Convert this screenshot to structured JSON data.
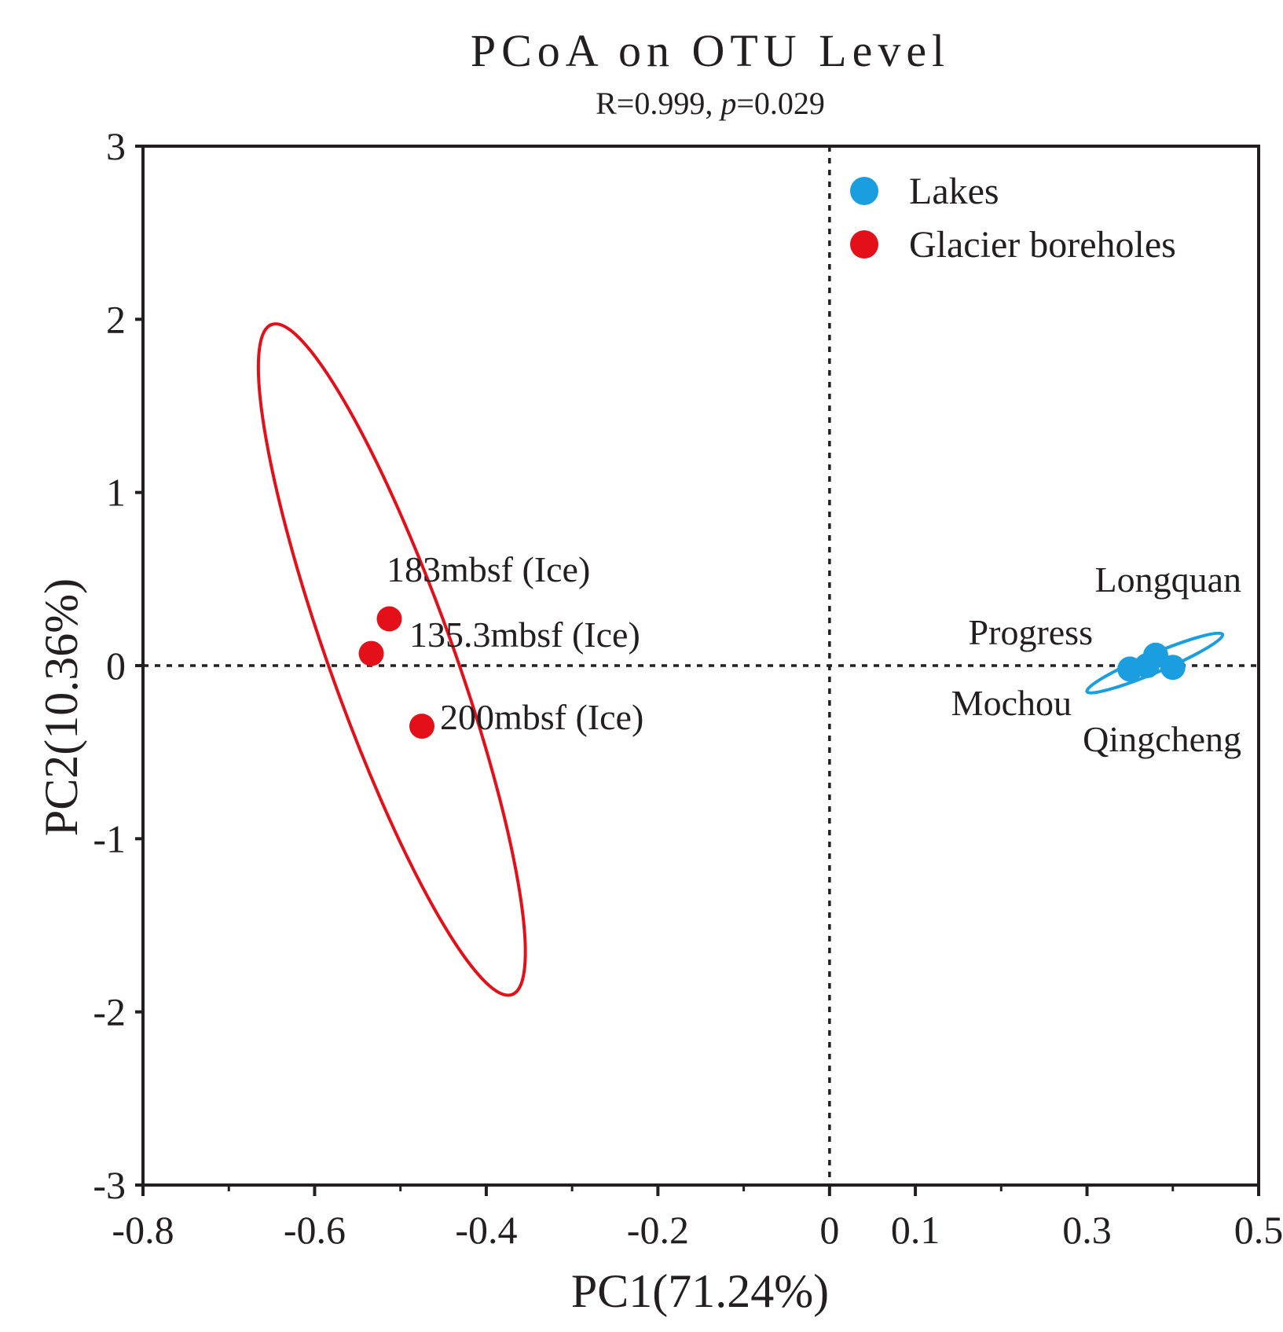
{
  "chart_data": {
    "type": "scatter",
    "title": "PCoA on OTU Level",
    "subtitle": {
      "stat_r": "R=0.999, ",
      "p_symbol": "p",
      "p_value": "=0.029"
    },
    "xlabel": "PC1(71.24%)",
    "ylabel": "PC2(10.36%)",
    "xlim": [
      -0.8,
      0.5
    ],
    "ylim": [
      -3,
      3
    ],
    "xticks": [
      -0.8,
      -0.6,
      -0.4,
      -0.2,
      0,
      0.1,
      0.3,
      0.5
    ],
    "xtick_labels": [
      "-0.8",
      "-0.6",
      "-0.4",
      "-0.2",
      "0",
      "0.1",
      "0.3",
      "0.5"
    ],
    "xticks_minor": [
      -0.7,
      -0.5,
      -0.3,
      -0.1,
      0.2,
      0.4
    ],
    "yticks": [
      3,
      2,
      1,
      0,
      -1,
      -2,
      -3
    ],
    "ytick_labels": [
      "3",
      "2",
      "1",
      "0",
      "-1",
      "-2",
      "-3"
    ],
    "reference_lines": {
      "x": 0,
      "y": 0,
      "style": "dotted"
    },
    "legend_position": "top-right",
    "series": [
      {
        "name": "Lakes",
        "color": "#1b9ee0",
        "points": [
          {
            "label": "Mochou",
            "x": 0.35,
            "y": -0.02
          },
          {
            "label": "Progress",
            "x": 0.37,
            "y": 0.0
          },
          {
            "label": "Longquan",
            "x": 0.38,
            "y": 0.06
          },
          {
            "label": "Qingcheng",
            "x": 0.4,
            "y": -0.01
          }
        ],
        "ellipse": {
          "cx": 0.381,
          "cy": 0.03,
          "rx": 0.082,
          "ry": 0.082,
          "rotation_deg": 0,
          "ry_y": 0.165,
          "tilt": 0.14
        }
      },
      {
        "name": "Glacier boreholes",
        "color": "#e3101a",
        "points": [
          {
            "label": "183mbsf (Ice)",
            "x": -0.513,
            "y": 0.27
          },
          {
            "label": "135.3mbsf (Ice)",
            "x": -0.534,
            "y": 0.07
          },
          {
            "label": "200mbsf (Ice)",
            "x": -0.475,
            "y": -0.35
          }
        ],
        "ellipse": {
          "cx": -0.51,
          "cy": 0.04,
          "rx": 0.18,
          "ry_y": 1.95,
          "tilt": -0.75
        }
      }
    ]
  }
}
